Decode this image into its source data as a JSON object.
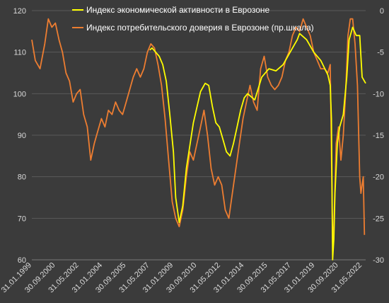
{
  "chart_data": {
    "type": "line",
    "title": "",
    "legend_position": "top",
    "grid": true,
    "x_ticks": [
      "31.01.1999",
      "30.09.2000",
      "31.05.2002",
      "31.01.2004",
      "30.09.2005",
      "31.05.2007",
      "31.01.2009",
      "30.09.2010",
      "31.05.2012",
      "31.01.2014",
      "30.09.2015",
      "31.05.2017",
      "31.01.2019",
      "30.09.2020",
      "31.05.2022"
    ],
    "x_range": [
      "1999-01-31",
      "2022-08-31"
    ],
    "y_left": {
      "min": 60,
      "max": 120,
      "step": 10,
      "ticks": [
        "60",
        "70",
        "80",
        "90",
        "100",
        "110",
        "120"
      ]
    },
    "y_right": {
      "min": -30,
      "max": 0,
      "step": 5,
      "ticks": [
        "-30",
        "-25",
        "-20",
        "-15",
        "-10",
        "-5",
        "0"
      ]
    },
    "series": [
      {
        "name": "Индекс экономической активности в Еврозоне",
        "color": "#ffff00",
        "axis": "left",
        "x": [
          "2007-05-31",
          "2007-07-31",
          "2007-10-31",
          "2008-01-31",
          "2008-04-30",
          "2008-07-31",
          "2008-10-31",
          "2009-01-31",
          "2009-03-31",
          "2009-06-30",
          "2009-09-30",
          "2009-12-31",
          "2010-06-30",
          "2010-12-31",
          "2011-04-30",
          "2011-07-31",
          "2011-10-31",
          "2012-01-31",
          "2012-04-30",
          "2012-07-31",
          "2012-10-31",
          "2013-01-31",
          "2013-04-30",
          "2013-07-31",
          "2013-10-31",
          "2014-01-31",
          "2014-04-30",
          "2014-10-31",
          "2015-04-30",
          "2015-10-31",
          "2016-04-30",
          "2016-10-31",
          "2017-04-30",
          "2017-10-31",
          "2017-12-31",
          "2018-06-30",
          "2018-12-31",
          "2019-06-30",
          "2019-12-31",
          "2020-02-29",
          "2020-03-31",
          "2020-04-30",
          "2020-05-31",
          "2020-06-30",
          "2020-08-31",
          "2020-10-31",
          "2021-01-31",
          "2021-04-30",
          "2021-06-30",
          "2021-09-30",
          "2021-12-31",
          "2022-03-31",
          "2022-05-31",
          "2022-08-31"
        ],
        "values": [
          110.5,
          111,
          110,
          109,
          107,
          103,
          95,
          86,
          75,
          69,
          73,
          82,
          93,
          100.5,
          102.5,
          102,
          97,
          93,
          92,
          89,
          86,
          85,
          88,
          92,
          96,
          99,
          100,
          98.5,
          104,
          106,
          105.5,
          107,
          110,
          113,
          114.5,
          113,
          110,
          108,
          104.5,
          102,
          94,
          60,
          65,
          76,
          88,
          92,
          95,
          104,
          113,
          116,
          114,
          114,
          104,
          102.5
        ]
      },
      {
        "name": "Индекс потребительского доверия в Еврозоне (пр.шкала)",
        "color": "#ed7d31",
        "axis": "right",
        "x": [
          "1999-01-31",
          "1999-04-30",
          "1999-08-31",
          "1999-12-31",
          "2000-03-31",
          "2000-06-30",
          "2000-09-30",
          "2000-12-31",
          "2001-03-31",
          "2001-06-30",
          "2001-09-30",
          "2001-12-31",
          "2002-03-31",
          "2002-06-30",
          "2002-09-30",
          "2002-12-31",
          "2003-03-31",
          "2003-06-30",
          "2003-09-30",
          "2003-12-31",
          "2004-03-31",
          "2004-06-30",
          "2004-09-30",
          "2004-12-31",
          "2005-03-31",
          "2005-06-30",
          "2005-09-30",
          "2005-12-31",
          "2006-03-31",
          "2006-06-30",
          "2006-09-30",
          "2006-12-31",
          "2007-03-31",
          "2007-06-30",
          "2007-09-30",
          "2007-12-31",
          "2008-03-31",
          "2008-06-30",
          "2008-09-30",
          "2008-12-31",
          "2009-03-31",
          "2009-06-30",
          "2009-09-30",
          "2009-12-31",
          "2010-03-31",
          "2010-06-30",
          "2010-09-30",
          "2010-12-31",
          "2011-03-31",
          "2011-06-30",
          "2011-09-30",
          "2011-12-31",
          "2012-03-31",
          "2012-06-30",
          "2012-09-30",
          "2012-12-31",
          "2013-03-31",
          "2013-06-30",
          "2013-09-30",
          "2013-12-31",
          "2014-03-31",
          "2014-06-30",
          "2014-09-30",
          "2014-12-31",
          "2015-03-31",
          "2015-06-30",
          "2015-09-30",
          "2015-12-31",
          "2016-03-31",
          "2016-06-30",
          "2016-09-30",
          "2016-12-31",
          "2017-03-31",
          "2017-06-30",
          "2017-09-30",
          "2017-12-31",
          "2018-03-31",
          "2018-06-30",
          "2018-09-30",
          "2018-12-31",
          "2019-03-31",
          "2019-06-30",
          "2019-09-30",
          "2019-12-31",
          "2020-02-29",
          "2020-04-30",
          "2020-05-31",
          "2020-07-31",
          "2020-09-30",
          "2020-11-30",
          "2021-01-31",
          "2021-03-31",
          "2021-05-31",
          "2021-07-31",
          "2021-09-30",
          "2021-11-30",
          "2022-01-31",
          "2022-03-31",
          "2022-04-30",
          "2022-06-30",
          "2022-07-31"
        ],
        "values": [
          -3.5,
          -6,
          -7,
          -4,
          -1,
          -2,
          -1.5,
          -3.5,
          -5,
          -7.5,
          -8.5,
          -11,
          -10,
          -9.5,
          -12.5,
          -14,
          -18,
          -16,
          -14.5,
          -13,
          -14,
          -12,
          -12.5,
          -11,
          -12,
          -12.5,
          -11,
          -9.5,
          -8,
          -7,
          -8,
          -7,
          -5,
          -4,
          -4.5,
          -6.5,
          -9,
          -13,
          -18,
          -23,
          -25,
          -26,
          -24,
          -20,
          -17,
          -18,
          -16,
          -14,
          -12,
          -15,
          -19,
          -21,
          -20,
          -21,
          -24,
          -25,
          -22,
          -19,
          -16,
          -13,
          -11,
          -9,
          -11,
          -12,
          -7,
          -5.5,
          -8,
          -9,
          -9.5,
          -9,
          -8,
          -6,
          -5,
          -3,
          -2,
          -2.5,
          -1,
          -2,
          -3,
          -5,
          -6,
          -7,
          -7,
          -7.5,
          -6.5,
          -28,
          -26,
          -16,
          -14,
          -18,
          -15,
          -10,
          -3,
          -1,
          -1,
          -4,
          -9,
          -20,
          -22,
          -20,
          -27
        ]
      }
    ]
  }
}
